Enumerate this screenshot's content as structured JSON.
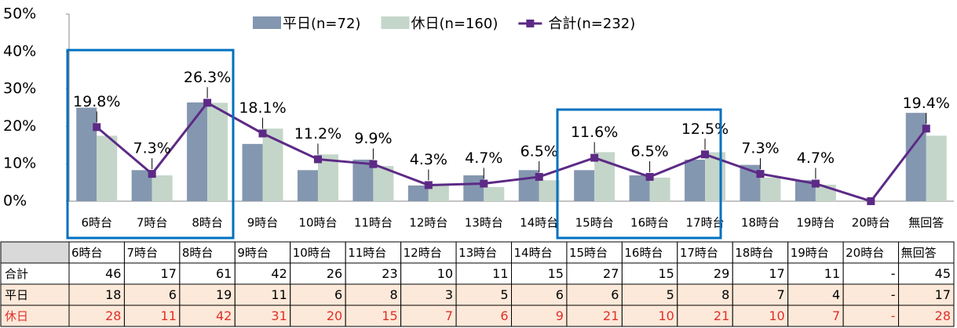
{
  "chart_data": {
    "type": "bar",
    "categories": [
      "6時台",
      "7時台",
      "8時台",
      "9時台",
      "10時台",
      "11時台",
      "12時台",
      "13時台",
      "14時台",
      "15時台",
      "16時台",
      "17時台",
      "18時台",
      "19時台",
      "20時台",
      "無回答"
    ],
    "series": [
      {
        "name": "平日(n=72)",
        "color": "#8497b0",
        "values": [
          25.0,
          8.3,
          26.4,
          15.3,
          8.3,
          11.1,
          4.2,
          6.9,
          8.3,
          8.3,
          6.9,
          11.1,
          9.7,
          5.6,
          0,
          23.6
        ]
      },
      {
        "name": "休日(n=160)",
        "color": "#c4d6c9",
        "values": [
          17.5,
          6.9,
          26.3,
          19.4,
          12.5,
          9.4,
          4.4,
          3.8,
          5.6,
          13.1,
          6.3,
          13.1,
          6.3,
          4.4,
          0,
          17.5
        ]
      },
      {
        "name": "合計(n=232)",
        "type": "line",
        "color": "#5c2a86",
        "values": [
          19.8,
          7.3,
          26.3,
          18.1,
          11.2,
          9.9,
          4.3,
          4.7,
          6.5,
          11.6,
          6.5,
          12.5,
          7.3,
          4.7,
          0,
          19.4
        ],
        "value_labels": [
          "19.8%",
          "7.3%",
          "26.3%",
          "18.1%",
          "11.2%",
          "9.9%",
          "4.3%",
          "4.7%",
          "6.5%",
          "11.6%",
          "6.5%",
          "12.5%",
          "7.3%",
          "4.7%",
          null,
          "19.4%"
        ]
      }
    ],
    "ylim": [
      0,
      50
    ],
    "yticks": [
      {
        "value": 0,
        "label": "0%"
      },
      {
        "value": 10,
        "label": "10%"
      },
      {
        "value": 20,
        "label": "20%"
      },
      {
        "value": 30,
        "label": "30%"
      },
      {
        "value": 40,
        "label": "40%"
      },
      {
        "value": 50,
        "label": "50%"
      }
    ],
    "legend": "top"
  },
  "table": {
    "rows": [
      {
        "label": "合計",
        "values": [
          "46",
          "17",
          "61",
          "42",
          "26",
          "23",
          "10",
          "11",
          "15",
          "27",
          "15",
          "29",
          "17",
          "11",
          "-",
          "45"
        ]
      },
      {
        "label": "平日",
        "values": [
          "18",
          "6",
          "19",
          "11",
          "6",
          "8",
          "3",
          "5",
          "6",
          "6",
          "5",
          "8",
          "7",
          "4",
          "-",
          "17"
        ]
      },
      {
        "label": "休日",
        "values": [
          "28",
          "11",
          "42",
          "31",
          "20",
          "15",
          "7",
          "6",
          "9",
          "21",
          "10",
          "21",
          "10",
          "7",
          "-",
          "28"
        ]
      }
    ]
  }
}
